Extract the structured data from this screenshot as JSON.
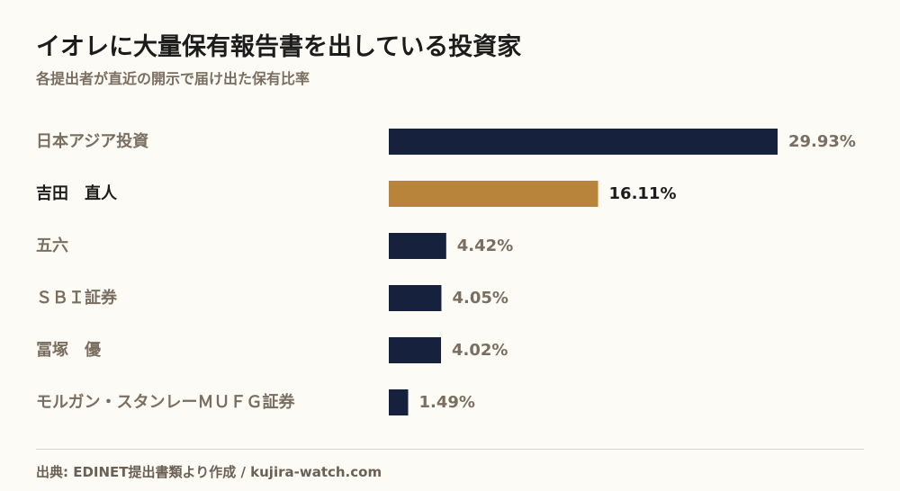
{
  "title": "イオレに大量保有報告書を出している投資家",
  "subtitle": "各提出者が直近の開示で届け出た保有比率",
  "source": "出典: EDINET提出書類より作成 / kujira-watch.com",
  "colors": {
    "bar": "#16213d",
    "highlight": "#b8843b"
  },
  "chart_data": {
    "type": "bar",
    "orientation": "horizontal",
    "categories": [
      "日本アジア投資",
      "吉田　直人",
      "五六",
      "ＳＢＩ証券",
      "冨塚　優",
      "モルガン・スタンレーＭＵＦＧ証券"
    ],
    "values": [
      29.93,
      16.11,
      4.42,
      4.05,
      4.02,
      1.49
    ],
    "value_labels": [
      "29.93%",
      "16.11%",
      "4.42%",
      "4.05%",
      "4.02%",
      "1.49%"
    ],
    "highlight_index": 1,
    "xlim": [
      0,
      29.93
    ],
    "grid": false,
    "legend": "none"
  }
}
